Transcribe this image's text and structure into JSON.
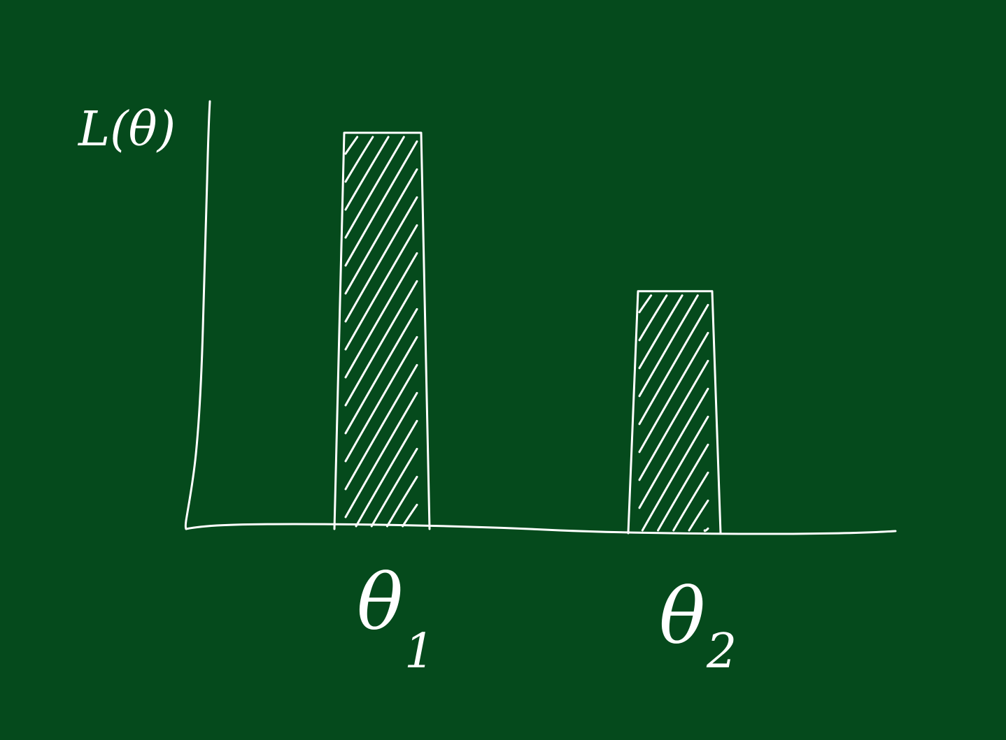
{
  "chart_data": {
    "type": "bar",
    "ylabel": "L(θ)",
    "xlabel": "",
    "categories": [
      "θ1",
      "θ2"
    ],
    "category_symbol": "θ",
    "category_subscripts": [
      "1",
      "2"
    ],
    "values": [
      1.0,
      0.6
    ],
    "ylim": [
      0,
      1.1
    ],
    "hatched": true,
    "grid": false,
    "y_ticks_shown": false
  },
  "colors": {
    "board": "#054a1c",
    "chalk": "#ffffff"
  }
}
